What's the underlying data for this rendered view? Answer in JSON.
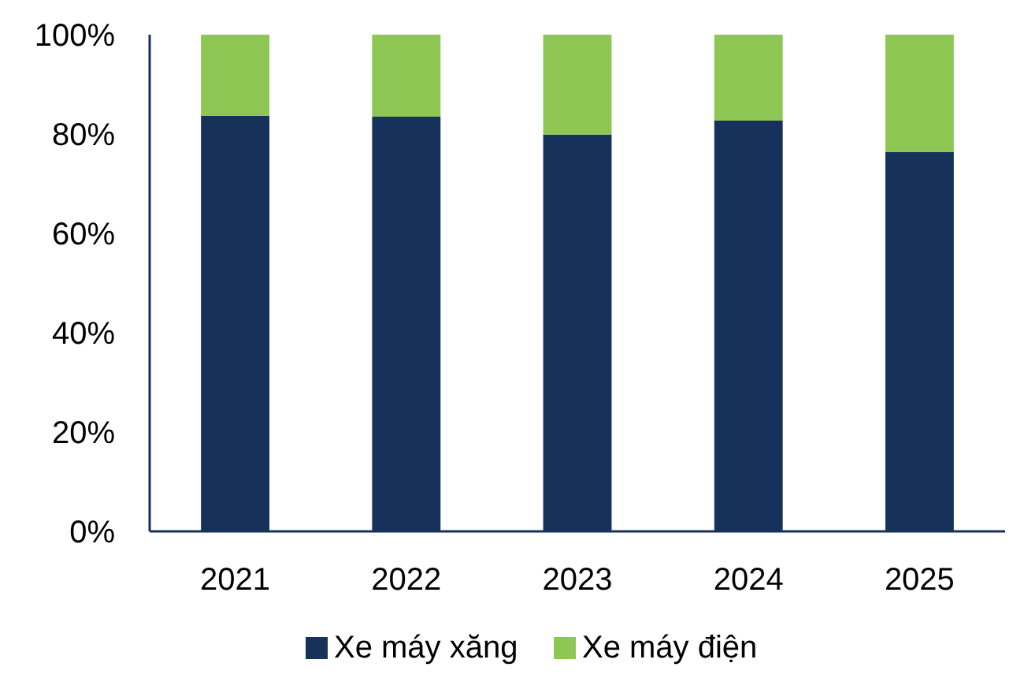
{
  "chart_data": {
    "type": "bar",
    "stacked": true,
    "categories": [
      "2021",
      "2022",
      "2023",
      "2024",
      "2025"
    ],
    "series": [
      {
        "name": "Xe máy xăng",
        "color": "#17325a",
        "values": [
          83.7,
          83.5,
          79.9,
          82.7,
          76.4
        ]
      },
      {
        "name": "Xe máy điện",
        "color": "#8dc653",
        "values": [
          16.3,
          16.5,
          20.1,
          17.3,
          23.6
        ]
      }
    ],
    "ylim": [
      0,
      100
    ],
    "yticks": [
      {
        "value": 0,
        "label": "0%"
      },
      {
        "value": 20,
        "label": "20%"
      },
      {
        "value": 40,
        "label": "40%"
      },
      {
        "value": 60,
        "label": "60%"
      },
      {
        "value": 80,
        "label": "80%"
      },
      {
        "value": 100,
        "label": "100%"
      }
    ],
    "grid": false,
    "legend": "bottom"
  }
}
